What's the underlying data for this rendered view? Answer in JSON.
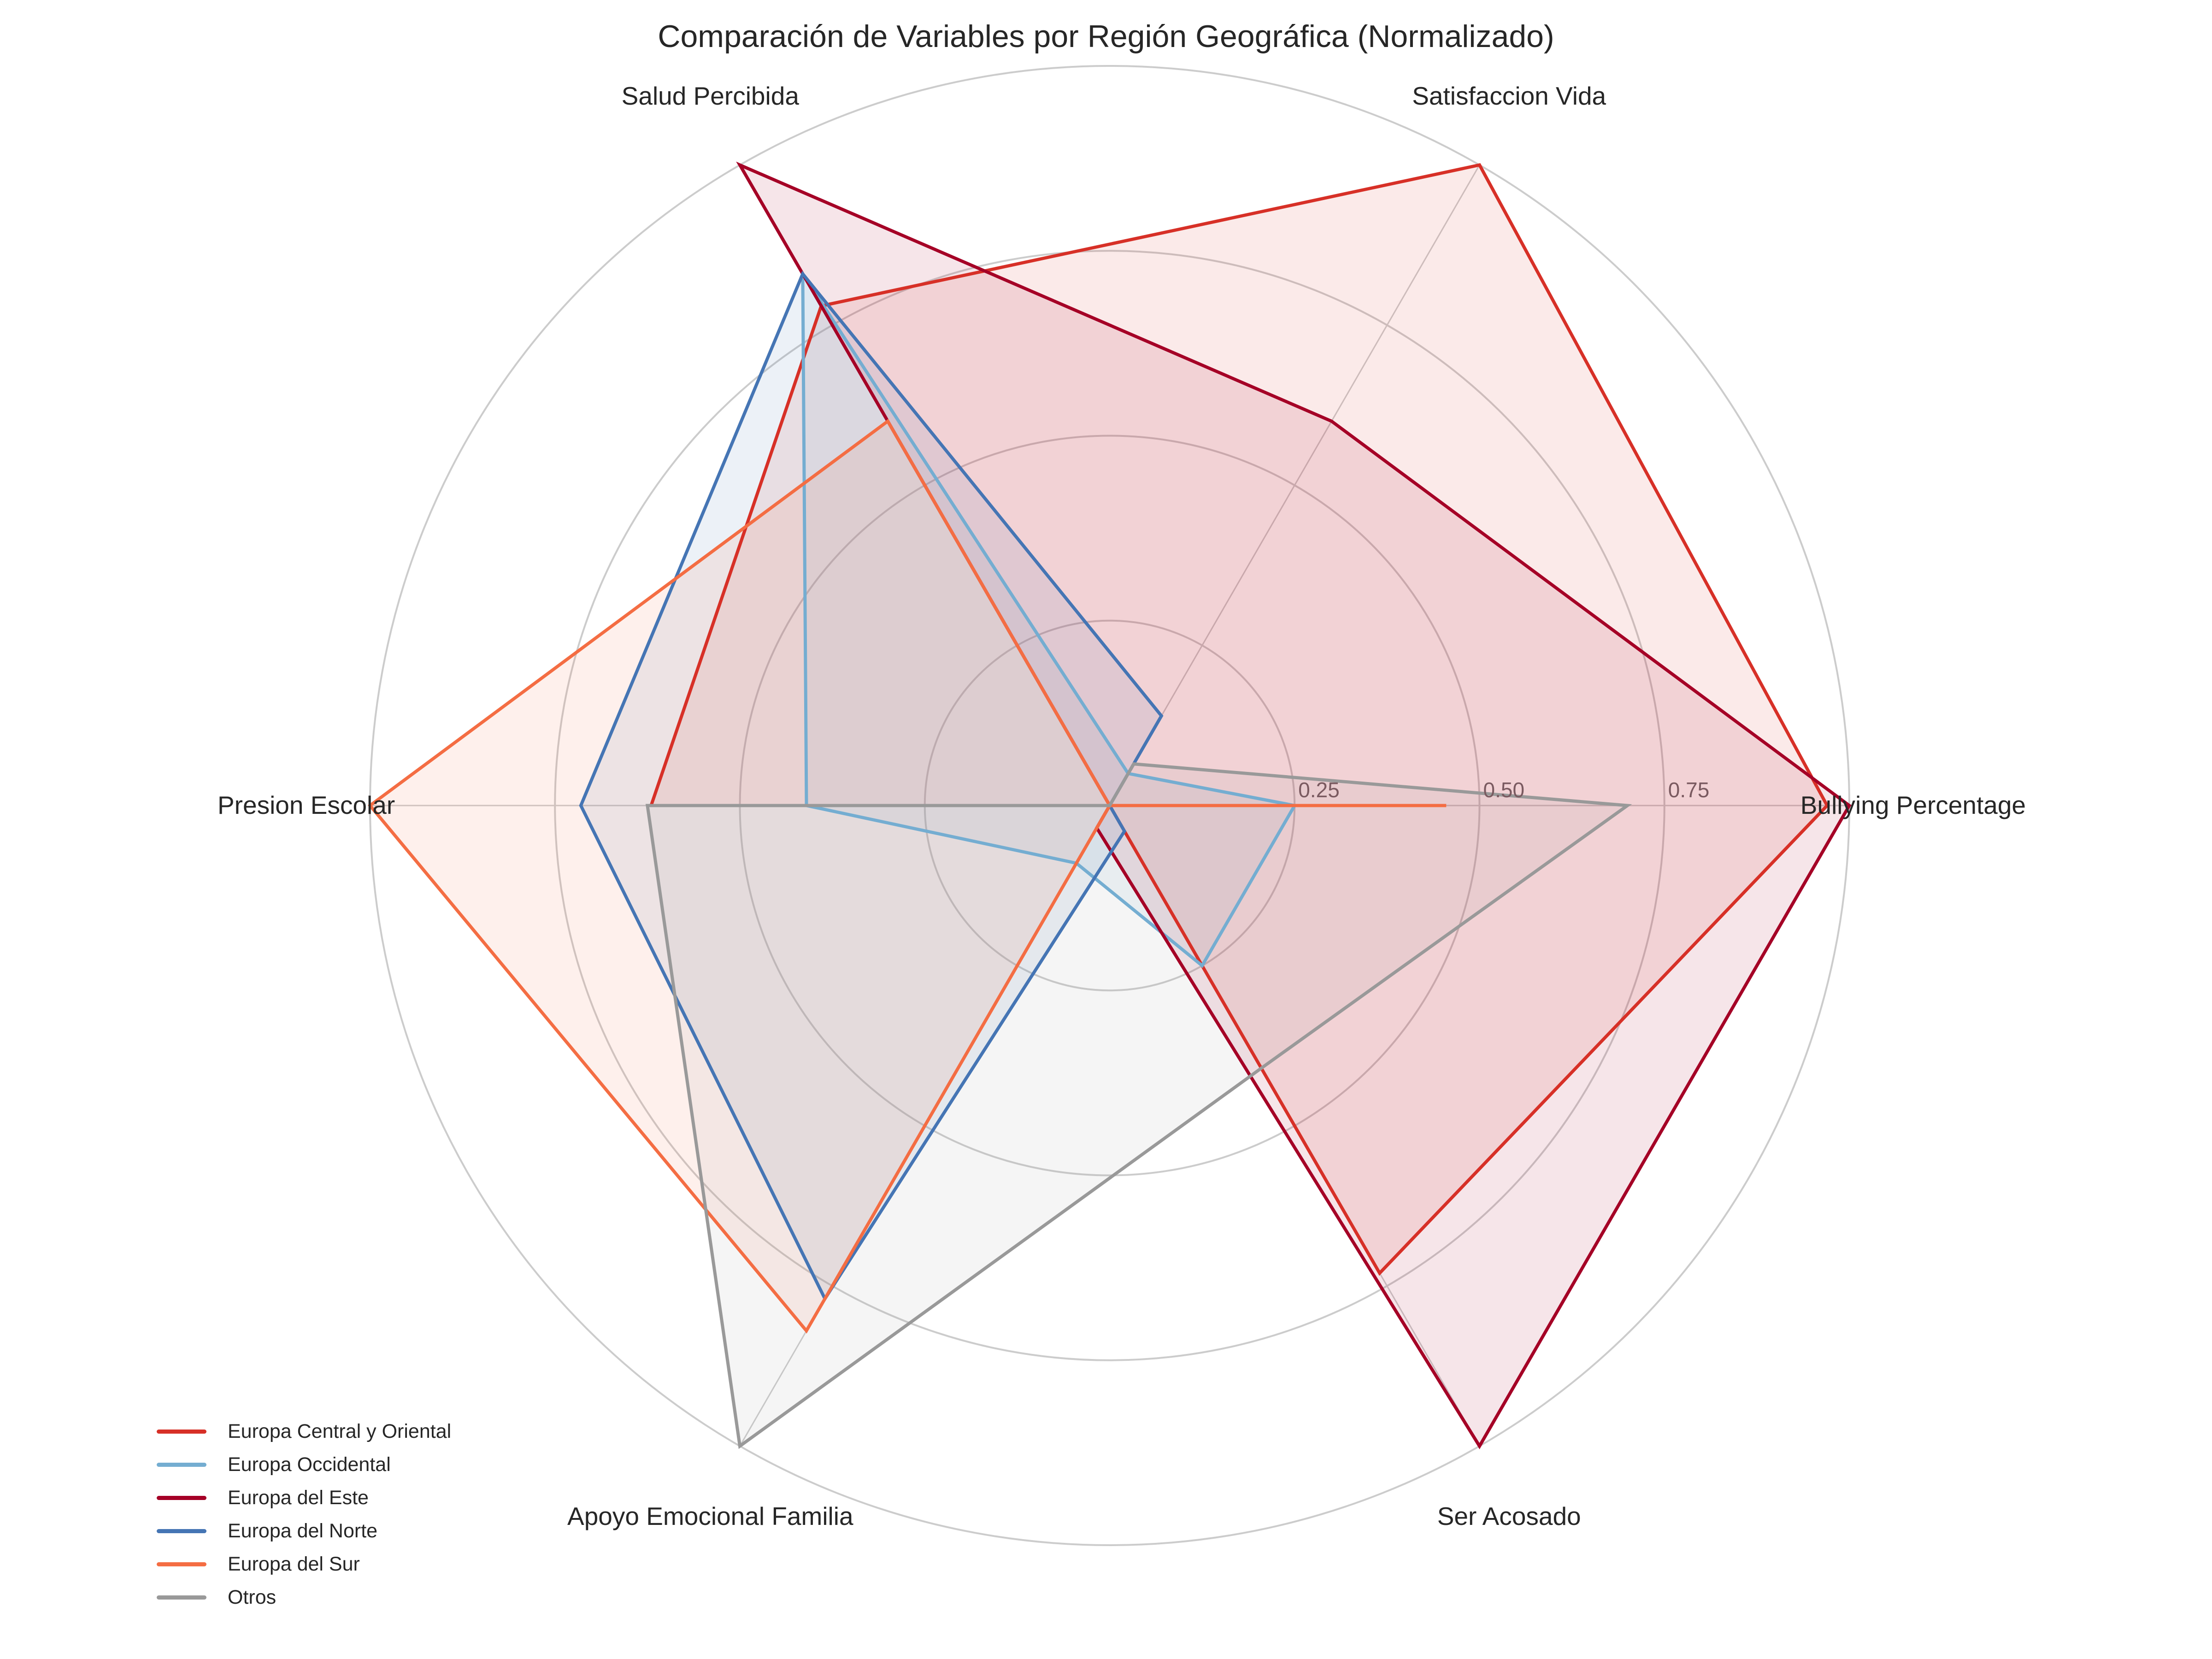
{
  "chart_data": {
    "type": "radar",
    "title": "Comparación de Variables por Región Geográfica (Normalizado)",
    "axes": [
      "Bullying Percentage",
      "Satisfaccion Vida",
      "Salud Percibida",
      "Presion Escolar",
      "Apoyo Emocional Familia",
      "Ser Acosado"
    ],
    "rlim": [
      0,
      1
    ],
    "r_ticks": [
      0.25,
      0.5,
      0.75,
      1.0
    ],
    "r_tick_labels": [
      "0.25",
      "0.50",
      "0.75"
    ],
    "grid": true,
    "legend_position": "lower left",
    "series": [
      {
        "name": "Europa Central y Oriental",
        "color": "#d73027",
        "values": [
          0.97,
          1.0,
          0.78,
          0.62,
          0.0,
          0.73
        ]
      },
      {
        "name": "Europa Occidental",
        "color": "#74add1",
        "values": [
          0.25,
          0.05,
          0.83,
          0.41,
          0.09,
          0.25
        ]
      },
      {
        "name": "Europa del Este",
        "color": "#a50026",
        "values": [
          1.0,
          0.6,
          1.0,
          0.0,
          0.035,
          1.0
        ]
      },
      {
        "name": "Europa del Norte",
        "color": "#4575b4",
        "values": [
          0.0,
          0.14,
          0.83,
          0.715,
          0.77,
          0.04
        ]
      },
      {
        "name": "Europa del Sur",
        "color": "#f46d43",
        "values": [
          0.455,
          0.0,
          0.6,
          1.0,
          0.82,
          0.0
        ]
      },
      {
        "name": "Otros",
        "color": "#999999",
        "values": [
          0.7,
          0.065,
          0.0,
          0.625,
          1.0,
          0.41
        ]
      }
    ]
  },
  "legend": {
    "items": [
      {
        "label": "Europa Central y Oriental",
        "color": "#d73027"
      },
      {
        "label": "Europa Occidental",
        "color": "#74add1"
      },
      {
        "label": "Europa del Este",
        "color": "#a50026"
      },
      {
        "label": "Europa del Norte",
        "color": "#4575b4"
      },
      {
        "label": "Europa del Sur",
        "color": "#f46d43"
      },
      {
        "label": "Otros",
        "color": "#999999"
      }
    ]
  }
}
